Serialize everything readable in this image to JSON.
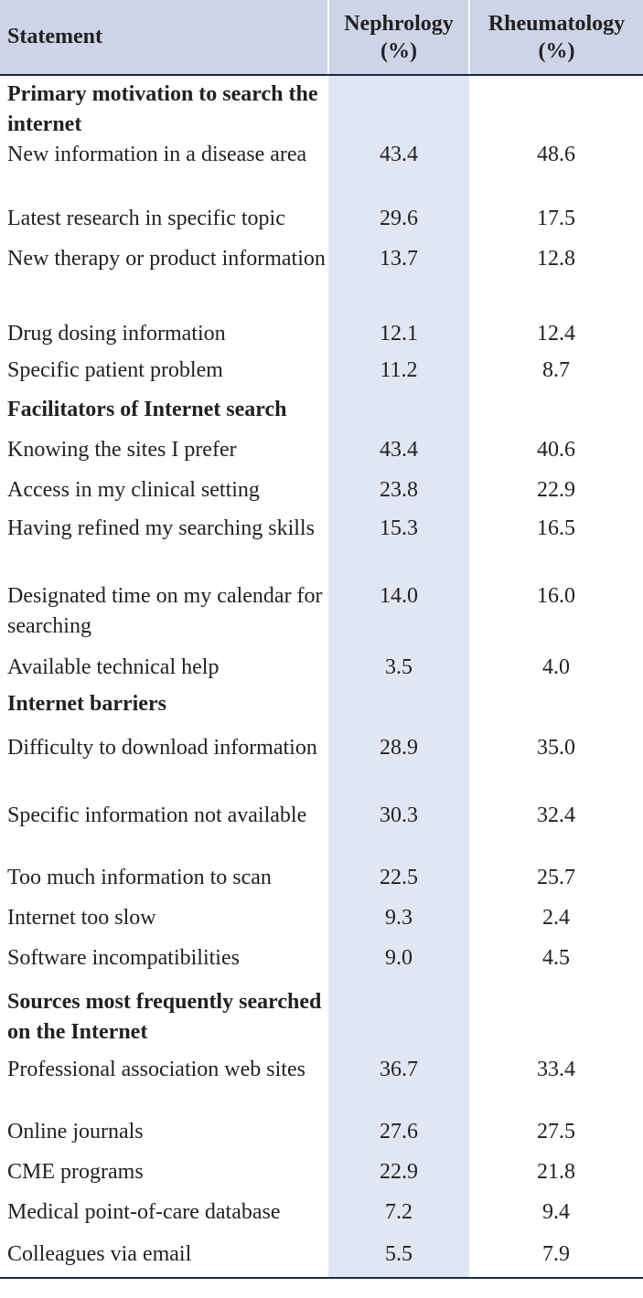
{
  "header": {
    "statement": "Statement",
    "col1_name": "Nephrology",
    "col1_unit": "(%)",
    "col2_name": "Rheumatology",
    "col2_unit": "(%)"
  },
  "rows": [
    {
      "type": "section",
      "label": "Primary motivation to search the internet"
    },
    {
      "type": "item",
      "label": "New information in a disease area",
      "nephrology": "43.4",
      "rheumatology": "48.6"
    },
    {
      "type": "item",
      "label": "Latest research in specific topic",
      "nephrology": "29.6",
      "rheumatology": "17.5"
    },
    {
      "type": "item",
      "label": "New therapy or product information",
      "nephrology": "13.7",
      "rheumatology": "12.8"
    },
    {
      "type": "item",
      "label": "Drug dosing information",
      "nephrology": "12.1",
      "rheumatology": "12.4"
    },
    {
      "type": "item",
      "label": "Specific patient problem",
      "nephrology": "11.2",
      "rheumatology": "8.7"
    },
    {
      "type": "section",
      "label": "Facilitators of Internet search"
    },
    {
      "type": "item",
      "label": "Knowing the sites I prefer",
      "nephrology": "43.4",
      "rheumatology": "40.6"
    },
    {
      "type": "item",
      "label": "Access in my clinical setting",
      "nephrology": "23.8",
      "rheumatology": "22.9"
    },
    {
      "type": "item",
      "label": "Having refined my searching skills",
      "nephrology": "15.3",
      "rheumatology": "16.5"
    },
    {
      "type": "item",
      "label": "Designated time on my calendar for searching",
      "nephrology": "14.0",
      "rheumatology": "16.0"
    },
    {
      "type": "item",
      "label": "Available technical help",
      "nephrology": "3.5",
      "rheumatology": "4.0"
    },
    {
      "type": "section",
      "label": "Internet barriers"
    },
    {
      "type": "item",
      "label": "Difficulty to download information",
      "nephrology": "28.9",
      "rheumatology": "35.0"
    },
    {
      "type": "item",
      "label": "Specific information not available",
      "nephrology": "30.3",
      "rheumatology": "32.4"
    },
    {
      "type": "item",
      "label": "Too much information to scan",
      "nephrology": "22.5",
      "rheumatology": "25.7"
    },
    {
      "type": "item",
      "label": "Internet too slow",
      "nephrology": "9.3",
      "rheumatology": "2.4"
    },
    {
      "type": "item",
      "label": "Software incompatibilities",
      "nephrology": "9.0",
      "rheumatology": "4.5"
    },
    {
      "type": "section",
      "label": "Sources most frequently searched on the Internet"
    },
    {
      "type": "item",
      "label": "Professional association web sites",
      "nephrology": "36.7",
      "rheumatology": "33.4"
    },
    {
      "type": "item",
      "label": "Online journals",
      "nephrology": "27.6",
      "rheumatology": "27.5"
    },
    {
      "type": "item",
      "label": "CME programs",
      "nephrology": "22.9",
      "rheumatology": "21.8"
    },
    {
      "type": "item",
      "label": "Medical point-of-care database",
      "nephrology": "7.2",
      "rheumatology": "9.4"
    },
    {
      "type": "item",
      "label": "Colleagues via email",
      "nephrology": "5.5",
      "rheumatology": "7.9"
    }
  ]
}
